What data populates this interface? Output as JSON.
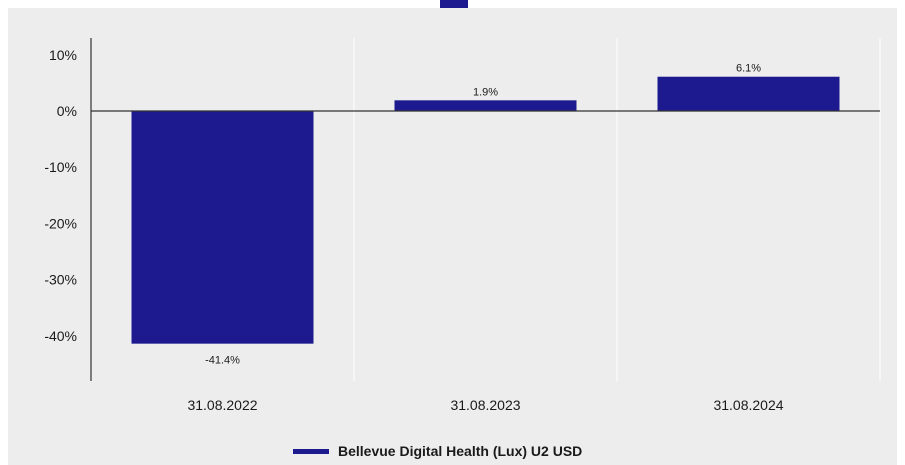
{
  "colors": {
    "series": "#1c1a8e",
    "axis": "#333333",
    "grid": "#ffffff",
    "panel": "#ededed"
  },
  "chart_data": {
    "type": "bar",
    "categories": [
      "31.08.2022",
      "31.08.2023",
      "31.08.2024"
    ],
    "series": [
      {
        "name": "Bellevue Digital Health (Lux) U2 USD",
        "values": [
          -41.4,
          1.9,
          6.1
        ]
      }
    ],
    "data_labels": [
      "-41.4%",
      "1.9%",
      "6.1%"
    ],
    "y_ticks": [
      10,
      0,
      -10,
      -20,
      -30,
      -40
    ],
    "y_tick_labels": [
      "10%",
      "0%",
      "-10%",
      "-20%",
      "-30%",
      "-40%"
    ],
    "ylim": [
      -48,
      12.8
    ],
    "grid": "vertical",
    "legend": "bottom-center",
    "title": "",
    "xlabel": "",
    "ylabel": ""
  },
  "legend": {
    "label": "Bellevue Digital Health (Lux) U2 USD"
  }
}
